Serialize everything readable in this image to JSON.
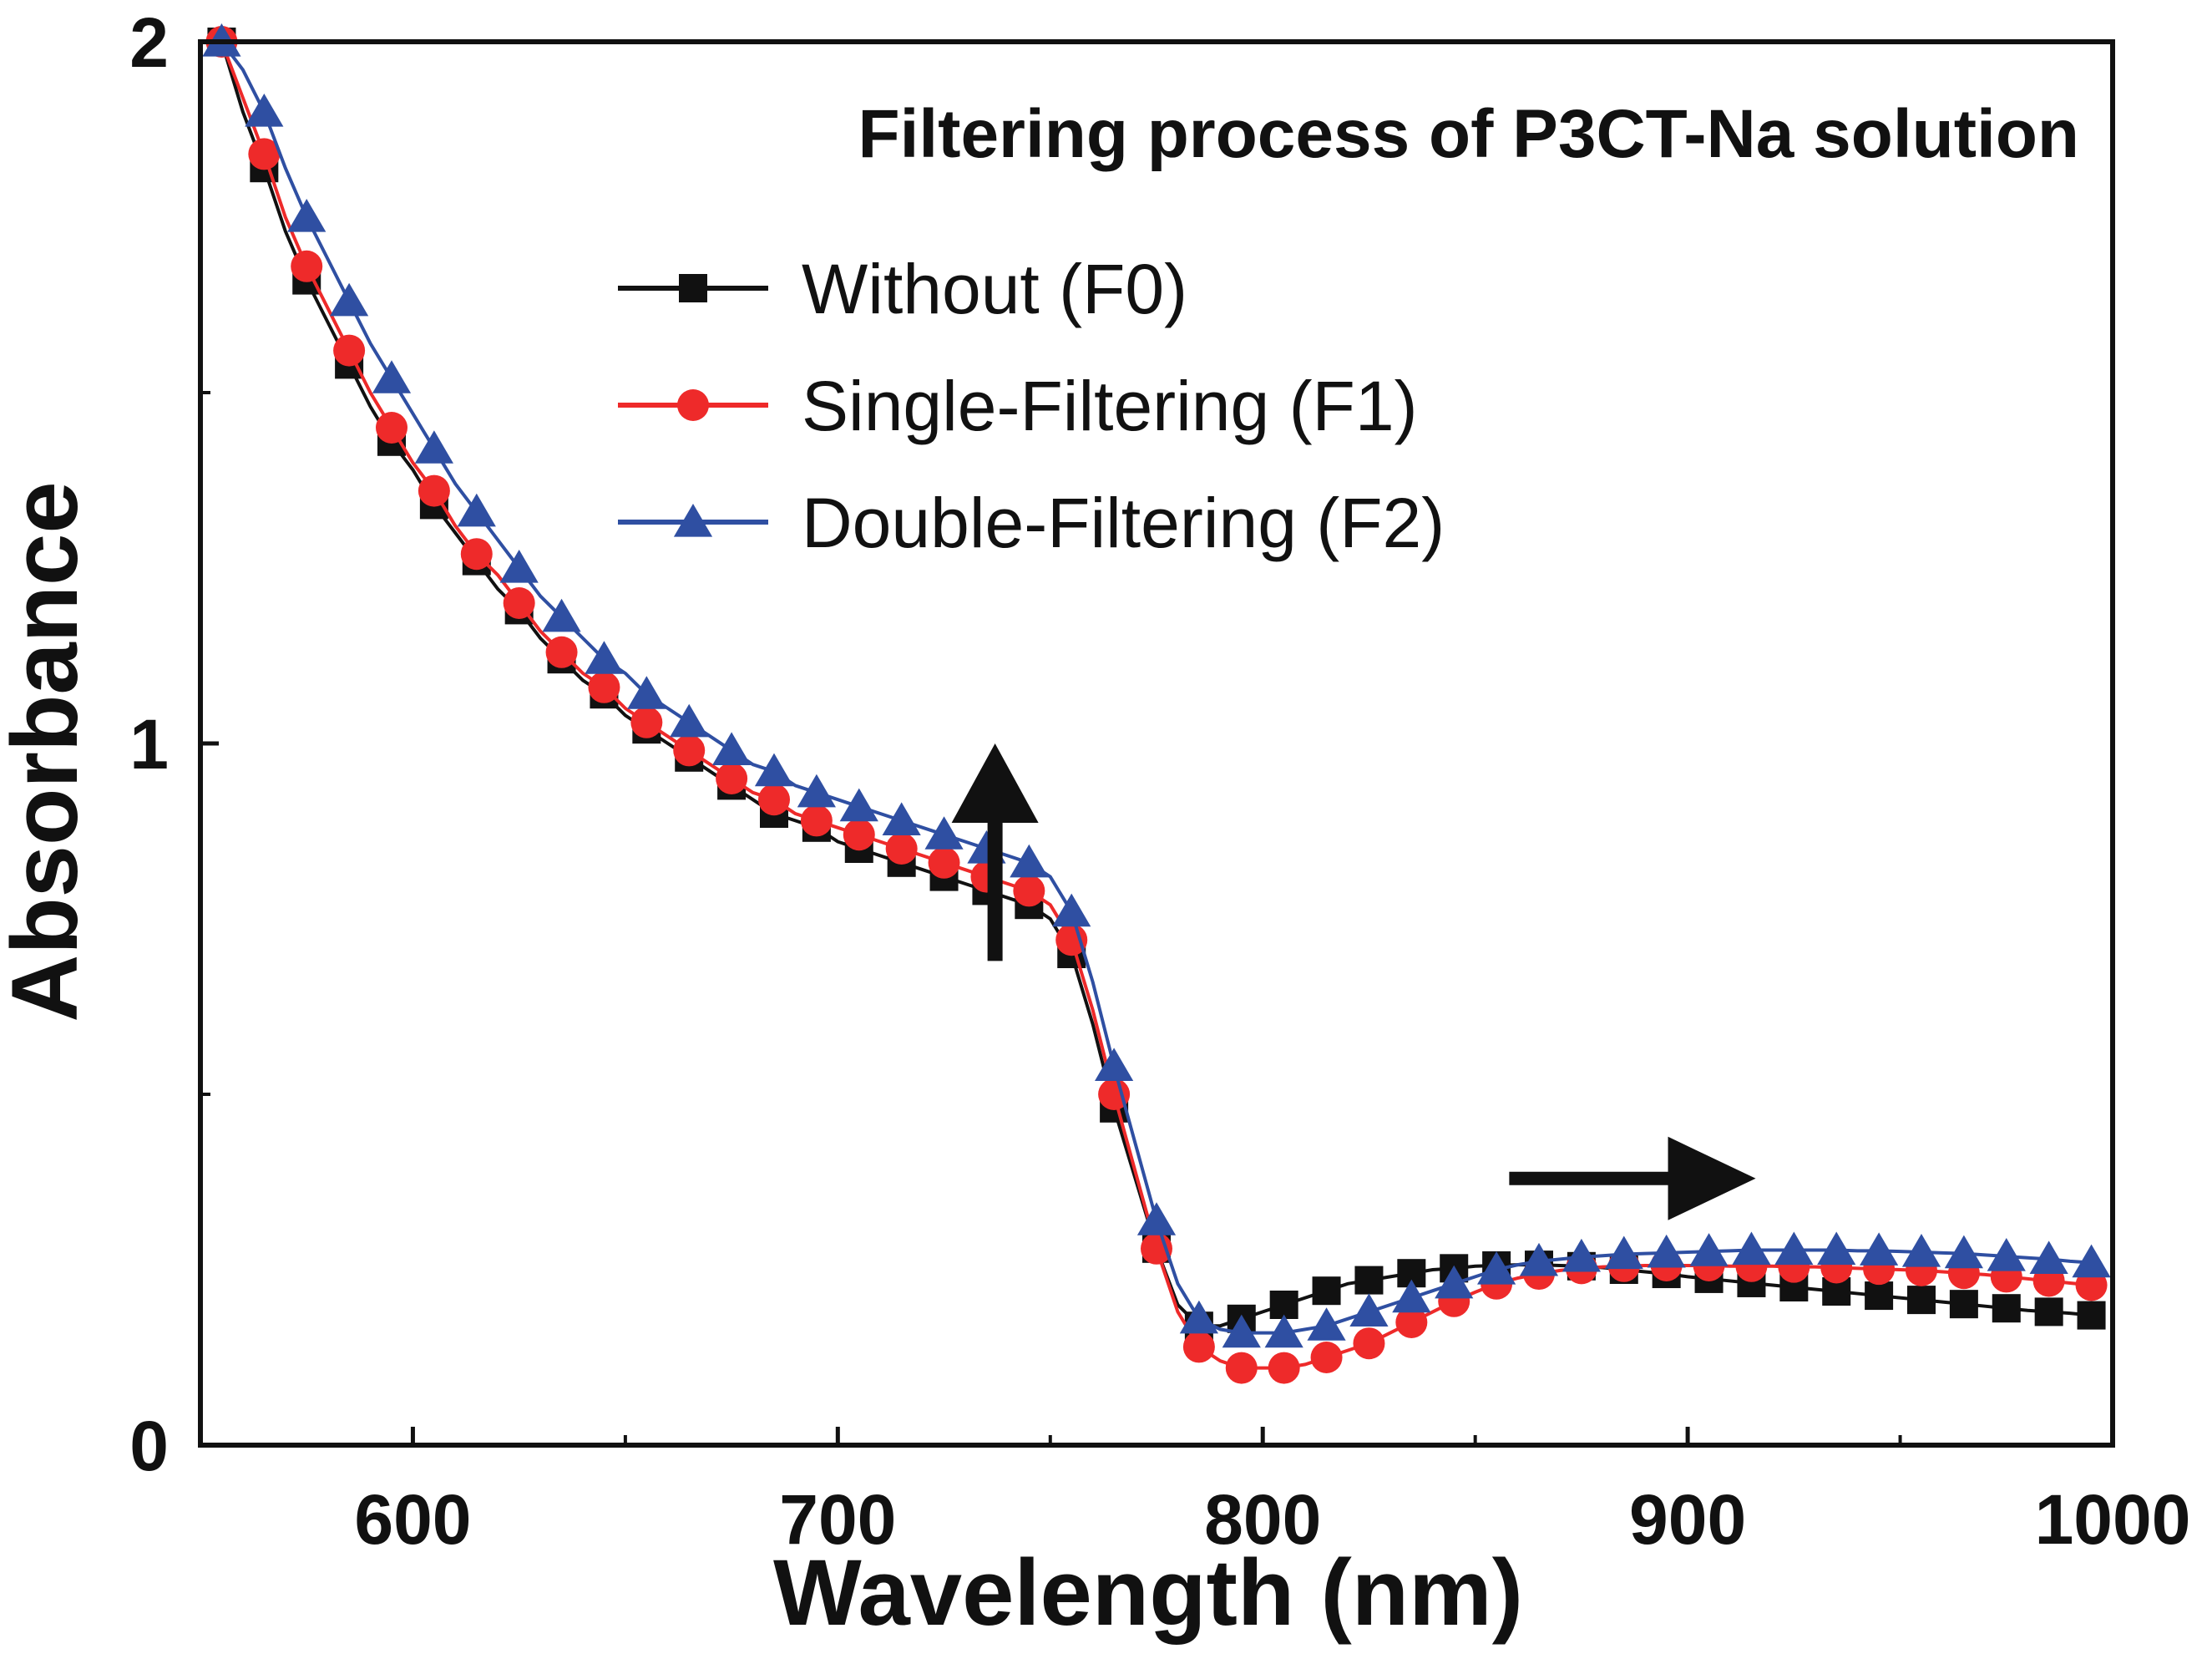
{
  "chart_data": {
    "type": "line",
    "title": "Filtering process of P3CT-Na solution",
    "xlabel": "Wavelength (nm)",
    "ylabel": "Absorbance",
    "xlim": [
      550,
      1000
    ],
    "ylim": [
      0,
      2
    ],
    "xticks": [
      600,
      700,
      800,
      900,
      1000
    ],
    "xtick_labels": [
      "600",
      "700",
      "800",
      "900",
      "1000"
    ],
    "yticks": [
      0,
      1,
      2
    ],
    "ytick_labels": [
      "0",
      "1",
      "2"
    ],
    "y_minor_ticks": [
      0.5,
      1.5
    ],
    "legend_position": "top-right",
    "series": [
      {
        "name": "Without (F0)",
        "color": "#111111",
        "marker": "square",
        "x": [
          555,
          560,
          565,
          570,
          575,
          580,
          585,
          590,
          595,
          600,
          605,
          610,
          615,
          620,
          625,
          630,
          635,
          640,
          645,
          650,
          655,
          660,
          665,
          670,
          675,
          680,
          685,
          690,
          695,
          700,
          705,
          710,
          715,
          720,
          725,
          730,
          735,
          740,
          745,
          750,
          755,
          760,
          765,
          770,
          775,
          780,
          785,
          790,
          795,
          800,
          805,
          810,
          815,
          820,
          825,
          830,
          835,
          840,
          845,
          850,
          855,
          860,
          865,
          870,
          875,
          880,
          885,
          890,
          895,
          900,
          905,
          910,
          915,
          920,
          925,
          930,
          935,
          940,
          945,
          950,
          955,
          960,
          965,
          970,
          975,
          980,
          985,
          990,
          995
        ],
        "y": [
          2.0,
          1.9,
          1.82,
          1.73,
          1.66,
          1.6,
          1.54,
          1.48,
          1.43,
          1.39,
          1.34,
          1.3,
          1.26,
          1.22,
          1.19,
          1.15,
          1.12,
          1.09,
          1.07,
          1.04,
          1.02,
          1.0,
          0.98,
          0.96,
          0.94,
          0.92,
          0.9,
          0.89,
          0.88,
          0.86,
          0.85,
          0.84,
          0.83,
          0.82,
          0.81,
          0.8,
          0.79,
          0.78,
          0.77,
          0.75,
          0.7,
          0.6,
          0.48,
          0.38,
          0.28,
          0.2,
          0.17,
          0.17,
          0.18,
          0.19,
          0.2,
          0.21,
          0.22,
          0.23,
          0.235,
          0.24,
          0.245,
          0.25,
          0.252,
          0.255,
          0.256,
          0.257,
          0.257,
          0.256,
          0.255,
          0.253,
          0.25,
          0.247,
          0.244,
          0.24,
          0.237,
          0.234,
          0.231,
          0.228,
          0.225,
          0.222,
          0.219,
          0.216,
          0.213,
          0.21,
          0.207,
          0.204,
          0.201,
          0.198,
          0.195,
          0.192,
          0.19,
          0.188,
          0.185
        ]
      },
      {
        "name": "Single-Filtering (F1)",
        "color": "#ee2a2a",
        "marker": "circle",
        "x": [
          555,
          560,
          565,
          570,
          575,
          580,
          585,
          590,
          595,
          600,
          605,
          610,
          615,
          620,
          625,
          630,
          635,
          640,
          645,
          650,
          655,
          660,
          665,
          670,
          675,
          680,
          685,
          690,
          695,
          700,
          705,
          710,
          715,
          720,
          725,
          730,
          735,
          740,
          745,
          750,
          755,
          760,
          765,
          770,
          775,
          780,
          785,
          790,
          795,
          800,
          805,
          810,
          815,
          820,
          825,
          830,
          835,
          840,
          845,
          850,
          855,
          860,
          865,
          870,
          875,
          880,
          885,
          890,
          895,
          900,
          905,
          910,
          915,
          920,
          925,
          930,
          935,
          940,
          945,
          950,
          955,
          960,
          965,
          970,
          975,
          980,
          985,
          990,
          995
        ],
        "y": [
          2.0,
          1.92,
          1.84,
          1.75,
          1.68,
          1.62,
          1.56,
          1.5,
          1.45,
          1.4,
          1.36,
          1.31,
          1.27,
          1.24,
          1.2,
          1.16,
          1.13,
          1.1,
          1.08,
          1.05,
          1.03,
          1.01,
          0.99,
          0.97,
          0.95,
          0.93,
          0.92,
          0.9,
          0.89,
          0.88,
          0.87,
          0.86,
          0.85,
          0.84,
          0.83,
          0.82,
          0.81,
          0.8,
          0.79,
          0.77,
          0.72,
          0.62,
          0.5,
          0.39,
          0.28,
          0.19,
          0.14,
          0.12,
          0.11,
          0.11,
          0.11,
          0.115,
          0.125,
          0.135,
          0.145,
          0.16,
          0.175,
          0.19,
          0.205,
          0.218,
          0.23,
          0.238,
          0.244,
          0.249,
          0.252,
          0.254,
          0.255,
          0.256,
          0.256,
          0.256,
          0.256,
          0.255,
          0.255,
          0.255,
          0.254,
          0.254,
          0.253,
          0.252,
          0.251,
          0.25,
          0.249,
          0.247,
          0.245,
          0.243,
          0.24,
          0.237,
          0.234,
          0.231,
          0.228
        ]
      },
      {
        "name": "Double-Filtering (F2)",
        "color": "#2f4fa2",
        "marker": "triangle",
        "x": [
          555,
          560,
          565,
          570,
          575,
          580,
          585,
          590,
          595,
          600,
          605,
          610,
          615,
          620,
          625,
          630,
          635,
          640,
          645,
          650,
          655,
          660,
          665,
          670,
          675,
          680,
          685,
          690,
          695,
          700,
          705,
          710,
          715,
          720,
          725,
          730,
          735,
          740,
          745,
          750,
          755,
          760,
          765,
          770,
          775,
          780,
          785,
          790,
          795,
          800,
          805,
          810,
          815,
          820,
          825,
          830,
          835,
          840,
          845,
          850,
          855,
          860,
          865,
          870,
          875,
          880,
          885,
          890,
          895,
          900,
          905,
          910,
          915,
          920,
          925,
          930,
          935,
          940,
          945,
          950,
          955,
          960,
          965,
          970,
          975,
          980,
          985,
          990,
          995
        ],
        "y": [
          2.0,
          1.96,
          1.9,
          1.82,
          1.75,
          1.69,
          1.63,
          1.57,
          1.52,
          1.47,
          1.42,
          1.37,
          1.33,
          1.29,
          1.25,
          1.21,
          1.18,
          1.15,
          1.12,
          1.1,
          1.07,
          1.05,
          1.03,
          1.01,
          0.99,
          0.97,
          0.96,
          0.94,
          0.93,
          0.92,
          0.91,
          0.9,
          0.89,
          0.88,
          0.87,
          0.86,
          0.85,
          0.84,
          0.83,
          0.81,
          0.76,
          0.66,
          0.54,
          0.43,
          0.32,
          0.23,
          0.18,
          0.165,
          0.16,
          0.16,
          0.16,
          0.165,
          0.17,
          0.18,
          0.19,
          0.2,
          0.21,
          0.22,
          0.23,
          0.24,
          0.25,
          0.257,
          0.262,
          0.265,
          0.268,
          0.27,
          0.272,
          0.273,
          0.274,
          0.275,
          0.276,
          0.277,
          0.278,
          0.278,
          0.278,
          0.278,
          0.278,
          0.277,
          0.277,
          0.276,
          0.275,
          0.274,
          0.273,
          0.271,
          0.269,
          0.267,
          0.265,
          0.262,
          0.26
        ]
      }
    ],
    "annotations": [
      {
        "type": "arrow",
        "direction": "up",
        "x": 737,
        "y_from": 0.69,
        "y_to": 1.0
      },
      {
        "type": "arrow",
        "direction": "right",
        "x_from": 858,
        "x_to": 916,
        "y": 0.38
      }
    ]
  }
}
